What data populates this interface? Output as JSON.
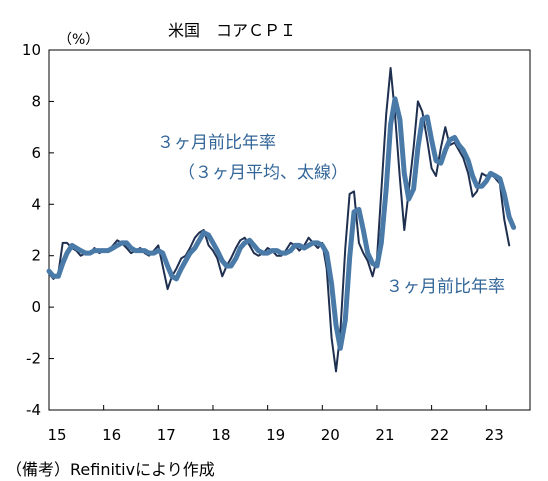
{
  "chart_data": {
    "type": "line",
    "title": "米国　コアＣＰＩ",
    "unit_label": "（%）",
    "xlabel": "",
    "ylabel": "",
    "ylim": [
      -4,
      10
    ],
    "yticks": [
      -4,
      -2,
      0,
      2,
      4,
      6,
      8,
      10
    ],
    "x_range": [
      2015.0,
      2023.8
    ],
    "x_ticks": [
      {
        "value": 2015.0,
        "label": "15"
      },
      {
        "value": 2016.0,
        "label": "16"
      },
      {
        "value": 2017.0,
        "label": "17"
      },
      {
        "value": 2018.0,
        "label": "18"
      },
      {
        "value": 2019.0,
        "label": "19"
      },
      {
        "value": 2020.0,
        "label": "20"
      },
      {
        "value": 2021.0,
        "label": "21"
      },
      {
        "value": 2022.0,
        "label": "22"
      },
      {
        "value": 2023.0,
        "label": "23"
      }
    ],
    "grid": false,
    "series": [
      {
        "name": "３ヶ月前比年率",
        "color": "#1f2f4f",
        "points": [
          [
            2015.0,
            1.3
          ],
          [
            2015.08,
            1.1
          ],
          [
            2015.17,
            1.3
          ],
          [
            2015.25,
            2.5
          ],
          [
            2015.33,
            2.5
          ],
          [
            2015.42,
            2.3
          ],
          [
            2015.5,
            2.2
          ],
          [
            2015.58,
            2.0
          ],
          [
            2015.67,
            2.1
          ],
          [
            2015.75,
            2.1
          ],
          [
            2015.83,
            2.3
          ],
          [
            2015.92,
            2.1
          ],
          [
            2016.0,
            2.2
          ],
          [
            2016.08,
            2.2
          ],
          [
            2016.17,
            2.4
          ],
          [
            2016.25,
            2.6
          ],
          [
            2016.33,
            2.5
          ],
          [
            2016.42,
            2.3
          ],
          [
            2016.5,
            2.1
          ],
          [
            2016.58,
            2.2
          ],
          [
            2016.67,
            2.3
          ],
          [
            2016.75,
            2.1
          ],
          [
            2016.83,
            2.0
          ],
          [
            2016.92,
            2.2
          ],
          [
            2017.0,
            2.4
          ],
          [
            2017.08,
            1.6
          ],
          [
            2017.17,
            0.7
          ],
          [
            2017.25,
            1.2
          ],
          [
            2017.33,
            1.5
          ],
          [
            2017.42,
            1.9
          ],
          [
            2017.5,
            2.0
          ],
          [
            2017.58,
            2.3
          ],
          [
            2017.67,
            2.7
          ],
          [
            2017.75,
            2.9
          ],
          [
            2017.83,
            3.0
          ],
          [
            2017.92,
            2.4
          ],
          [
            2018.0,
            2.2
          ],
          [
            2018.08,
            1.9
          ],
          [
            2018.17,
            1.2
          ],
          [
            2018.25,
            1.6
          ],
          [
            2018.33,
            1.9
          ],
          [
            2018.42,
            2.3
          ],
          [
            2018.5,
            2.6
          ],
          [
            2018.58,
            2.7
          ],
          [
            2018.67,
            2.4
          ],
          [
            2018.75,
            2.1
          ],
          [
            2018.83,
            2.0
          ],
          [
            2018.92,
            2.1
          ],
          [
            2019.0,
            2.3
          ],
          [
            2019.08,
            2.2
          ],
          [
            2019.17,
            2.0
          ],
          [
            2019.25,
            2.0
          ],
          [
            2019.33,
            2.2
          ],
          [
            2019.42,
            2.5
          ],
          [
            2019.5,
            2.4
          ],
          [
            2019.58,
            2.2
          ],
          [
            2019.67,
            2.4
          ],
          [
            2019.75,
            2.7
          ],
          [
            2019.83,
            2.5
          ],
          [
            2019.92,
            2.3
          ],
          [
            2020.0,
            2.5
          ],
          [
            2020.08,
            1.5
          ],
          [
            2020.17,
            -1.2
          ],
          [
            2020.25,
            -2.5
          ],
          [
            2020.33,
            -1.0
          ],
          [
            2020.42,
            2.3
          ],
          [
            2020.5,
            4.4
          ],
          [
            2020.58,
            4.5
          ],
          [
            2020.67,
            2.5
          ],
          [
            2020.75,
            2.1
          ],
          [
            2020.83,
            1.8
          ],
          [
            2020.92,
            1.2
          ],
          [
            2021.0,
            1.9
          ],
          [
            2021.08,
            4.5
          ],
          [
            2021.17,
            7.5
          ],
          [
            2021.25,
            9.3
          ],
          [
            2021.33,
            7.5
          ],
          [
            2021.42,
            5.0
          ],
          [
            2021.5,
            3.0
          ],
          [
            2021.58,
            4.5
          ],
          [
            2021.67,
            6.2
          ],
          [
            2021.75,
            8.0
          ],
          [
            2021.83,
            7.6
          ],
          [
            2021.92,
            6.5
          ],
          [
            2022.0,
            5.4
          ],
          [
            2022.08,
            5.1
          ],
          [
            2022.17,
            6.2
          ],
          [
            2022.25,
            7.0
          ],
          [
            2022.33,
            6.3
          ],
          [
            2022.42,
            6.4
          ],
          [
            2022.5,
            6.1
          ],
          [
            2022.58,
            5.8
          ],
          [
            2022.67,
            5.2
          ],
          [
            2022.75,
            4.3
          ],
          [
            2022.83,
            4.5
          ],
          [
            2022.92,
            5.2
          ],
          [
            2023.0,
            5.1
          ],
          [
            2023.08,
            5.2
          ],
          [
            2023.17,
            5.0
          ],
          [
            2023.25,
            4.8
          ],
          [
            2023.33,
            3.4
          ],
          [
            2023.42,
            2.4
          ]
        ]
      },
      {
        "name": "３ヶ月平均",
        "color": "#4a7aa8",
        "points": [
          [
            2015.0,
            1.4
          ],
          [
            2015.08,
            1.2
          ],
          [
            2015.17,
            1.2
          ],
          [
            2015.25,
            1.7
          ],
          [
            2015.33,
            2.1
          ],
          [
            2015.42,
            2.4
          ],
          [
            2015.5,
            2.3
          ],
          [
            2015.58,
            2.2
          ],
          [
            2015.67,
            2.1
          ],
          [
            2015.75,
            2.1
          ],
          [
            2015.83,
            2.2
          ],
          [
            2015.92,
            2.2
          ],
          [
            2016.0,
            2.2
          ],
          [
            2016.08,
            2.2
          ],
          [
            2016.17,
            2.3
          ],
          [
            2016.25,
            2.4
          ],
          [
            2016.33,
            2.5
          ],
          [
            2016.42,
            2.5
          ],
          [
            2016.5,
            2.3
          ],
          [
            2016.58,
            2.2
          ],
          [
            2016.67,
            2.2
          ],
          [
            2016.75,
            2.2
          ],
          [
            2016.83,
            2.1
          ],
          [
            2016.92,
            2.1
          ],
          [
            2017.0,
            2.2
          ],
          [
            2017.08,
            2.1
          ],
          [
            2017.17,
            1.6
          ],
          [
            2017.25,
            1.2
          ],
          [
            2017.33,
            1.1
          ],
          [
            2017.42,
            1.5
          ],
          [
            2017.5,
            1.8
          ],
          [
            2017.58,
            2.1
          ],
          [
            2017.67,
            2.3
          ],
          [
            2017.75,
            2.6
          ],
          [
            2017.83,
            2.9
          ],
          [
            2017.92,
            2.8
          ],
          [
            2018.0,
            2.5
          ],
          [
            2018.08,
            2.2
          ],
          [
            2018.17,
            1.8
          ],
          [
            2018.25,
            1.6
          ],
          [
            2018.33,
            1.6
          ],
          [
            2018.42,
            1.9
          ],
          [
            2018.5,
            2.3
          ],
          [
            2018.58,
            2.5
          ],
          [
            2018.67,
            2.6
          ],
          [
            2018.75,
            2.4
          ],
          [
            2018.83,
            2.2
          ],
          [
            2018.92,
            2.1
          ],
          [
            2019.0,
            2.1
          ],
          [
            2019.08,
            2.2
          ],
          [
            2019.17,
            2.2
          ],
          [
            2019.25,
            2.1
          ],
          [
            2019.33,
            2.1
          ],
          [
            2019.42,
            2.2
          ],
          [
            2019.5,
            2.4
          ],
          [
            2019.58,
            2.4
          ],
          [
            2019.67,
            2.3
          ],
          [
            2019.75,
            2.4
          ],
          [
            2019.83,
            2.5
          ],
          [
            2019.92,
            2.5
          ],
          [
            2020.0,
            2.4
          ],
          [
            2020.08,
            2.1
          ],
          [
            2020.17,
            0.9
          ],
          [
            2020.25,
            -0.7
          ],
          [
            2020.33,
            -1.6
          ],
          [
            2020.42,
            -0.5
          ],
          [
            2020.5,
            1.9
          ],
          [
            2020.58,
            3.7
          ],
          [
            2020.67,
            3.8
          ],
          [
            2020.75,
            3.0
          ],
          [
            2020.83,
            2.1
          ],
          [
            2020.92,
            1.7
          ],
          [
            2021.0,
            1.6
          ],
          [
            2021.08,
            2.5
          ],
          [
            2021.17,
            4.6
          ],
          [
            2021.25,
            7.1
          ],
          [
            2021.33,
            8.1
          ],
          [
            2021.42,
            7.3
          ],
          [
            2021.5,
            5.2
          ],
          [
            2021.58,
            4.2
          ],
          [
            2021.67,
            4.6
          ],
          [
            2021.75,
            6.2
          ],
          [
            2021.83,
            7.3
          ],
          [
            2021.92,
            7.4
          ],
          [
            2022.0,
            6.5
          ],
          [
            2022.08,
            5.7
          ],
          [
            2022.17,
            5.6
          ],
          [
            2022.25,
            6.1
          ],
          [
            2022.33,
            6.5
          ],
          [
            2022.42,
            6.6
          ],
          [
            2022.5,
            6.3
          ],
          [
            2022.58,
            6.1
          ],
          [
            2022.67,
            5.7
          ],
          [
            2022.75,
            5.1
          ],
          [
            2022.83,
            4.7
          ],
          [
            2022.92,
            4.7
          ],
          [
            2023.0,
            4.9
          ],
          [
            2023.08,
            5.2
          ],
          [
            2023.17,
            5.1
          ],
          [
            2023.25,
            5.0
          ],
          [
            2023.33,
            4.4
          ],
          [
            2023.42,
            3.5
          ],
          [
            2023.5,
            3.1
          ]
        ]
      }
    ],
    "annotations": [
      {
        "id": "avg",
        "lines": [
          "３ヶ月前比年率",
          "（３ヶ月平均、太線）"
        ]
      },
      {
        "id": "raw",
        "lines": [
          "３ヶ月前比年率"
        ]
      }
    ]
  },
  "source_note": "（備考）Refinitivにより作成"
}
